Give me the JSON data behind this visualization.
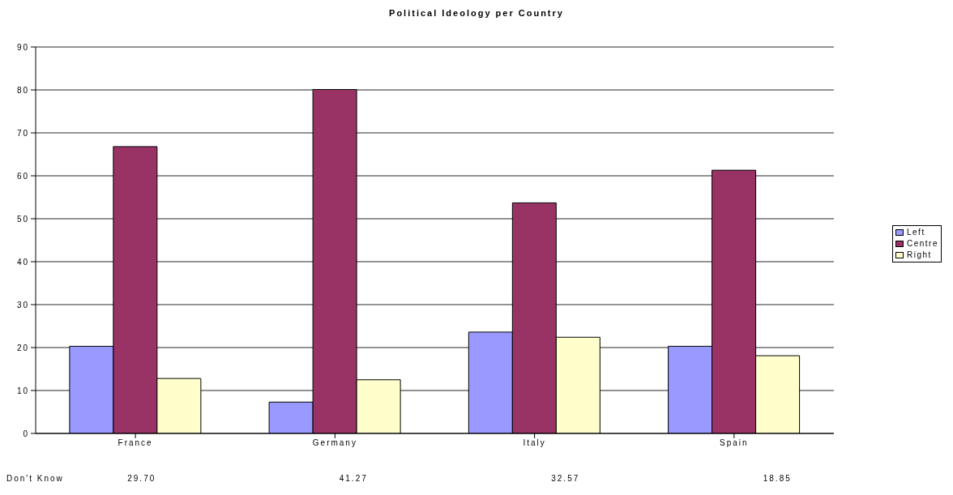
{
  "chart_data": {
    "type": "bar",
    "title": "Political Ideology per Country",
    "categories": [
      "France",
      "Germany",
      "Italy",
      "Spain"
    ],
    "series": [
      {
        "name": "Left",
        "color": "#9999ff",
        "values": [
          20.3,
          7.3,
          23.6,
          20.3
        ]
      },
      {
        "name": "Centre",
        "color": "#993366",
        "values": [
          66.8,
          80.1,
          53.7,
          61.3
        ]
      },
      {
        "name": "Right",
        "color": "#ffffcc",
        "values": [
          12.8,
          12.5,
          22.4,
          18.1
        ]
      }
    ],
    "ylim": [
      0,
      90
    ],
    "yticks": [
      0,
      10,
      20,
      30,
      40,
      50,
      60,
      70,
      80,
      90
    ],
    "grid": "y",
    "legend": "right",
    "annotations": [
      "Don't Know",
      "29.70",
      "41.27",
      "32.57",
      "18.85"
    ]
  }
}
